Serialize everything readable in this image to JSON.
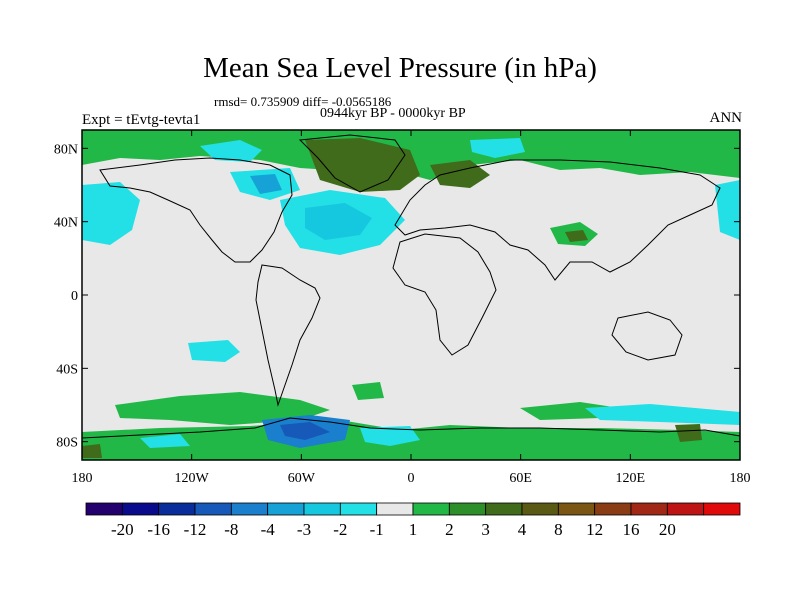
{
  "title": "Mean Sea Level Pressure (in hPa)",
  "stats": "rmsd= 0.735909 diff= -0.0565186",
  "period": "0944kyr BP - 0000kyr BP",
  "experiment": "Expt = tEvtg-tevta1",
  "season": "ANN",
  "map": {
    "projection": "cylindrical equidistant",
    "lon_range": [
      -180,
      180
    ],
    "lat_range": [
      -90,
      90
    ],
    "lat_ticks": [
      "80N",
      "40N",
      "0",
      "40S",
      "80S"
    ],
    "lon_ticks": [
      "180",
      "120W",
      "60W",
      "0",
      "60E",
      "120E",
      "180"
    ],
    "background_color": "#e8e8e8"
  },
  "colorbar": {
    "colors": [
      "#24006e",
      "#0a0a8c",
      "#0a2d9c",
      "#1659b8",
      "#1a7fcc",
      "#16a2d6",
      "#16c8df",
      "#22e0e6",
      "#e8e8e8",
      "#22b848",
      "#2c8f2a",
      "#3f6b1a",
      "#5a5a14",
      "#7a5514",
      "#8a3c14",
      "#a02814",
      "#bf1414",
      "#e00a0a"
    ],
    "labels": [
      "-20",
      "-16",
      "-12",
      "-8",
      "-4",
      "-3",
      "-2",
      "-1",
      "1",
      "2",
      "3",
      "4",
      "8",
      "12",
      "16",
      "20"
    ]
  }
}
